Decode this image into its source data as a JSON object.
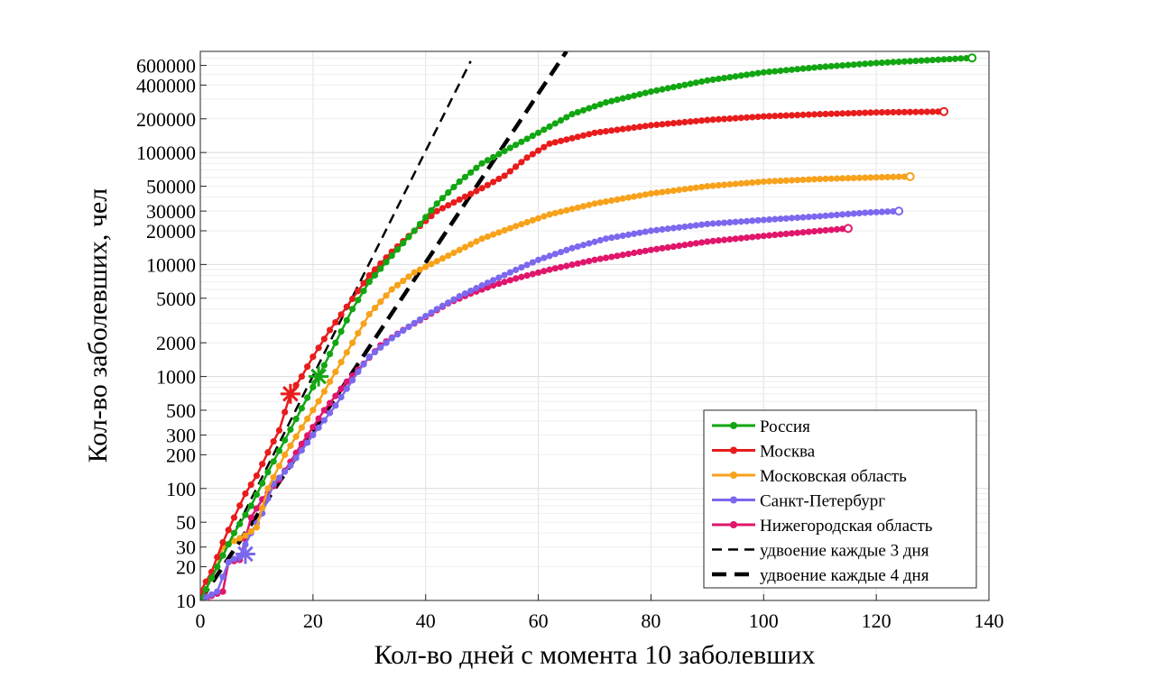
{
  "chart_data": {
    "type": "line",
    "xlabel": "Кол-во дней с момента 10 заболевших",
    "ylabel": "Кол-во заболевших, чел",
    "xlim": [
      0,
      140
    ],
    "ylim": [
      10,
      800000
    ],
    "y_scale": "log",
    "grid": true,
    "legend_placement": "bottom-right",
    "x_ticks": [
      0,
      20,
      40,
      60,
      80,
      100,
      120,
      140
    ],
    "y_ticks": [
      10,
      20,
      30,
      50,
      100,
      200,
      300,
      500,
      1000,
      2000,
      5000,
      10000,
      20000,
      30000,
      50000,
      100000,
      200000,
      400000,
      600000
    ],
    "x_tick_labels": [
      "0",
      "20",
      "40",
      "60",
      "80",
      "100",
      "120",
      "140"
    ],
    "y_tick_labels": [
      "10",
      "20",
      "30",
      "50",
      "100",
      "200",
      "300",
      "500",
      "1000",
      "2000",
      "5000",
      "10000",
      "20000",
      "30000",
      "50000",
      "100000",
      "200000",
      "400000",
      "600000"
    ],
    "series": [
      {
        "name": "Россия",
        "color": "#12a612",
        "marker": "dot",
        "points": [
          [
            0,
            10
          ],
          [
            3,
            20
          ],
          [
            6,
            40
          ],
          [
            9,
            70
          ],
          [
            12,
            140
          ],
          [
            15,
            270
          ],
          [
            18,
            520
          ],
          [
            21,
            1000
          ],
          [
            24,
            2000
          ],
          [
            27,
            4000
          ],
          [
            30,
            7000
          ],
          [
            34,
            12000
          ],
          [
            38,
            20000
          ],
          [
            42,
            35000
          ],
          [
            46,
            55000
          ],
          [
            50,
            80000
          ],
          [
            55,
            110000
          ],
          [
            60,
            150000
          ],
          [
            66,
            220000
          ],
          [
            72,
            280000
          ],
          [
            80,
            350000
          ],
          [
            90,
            440000
          ],
          [
            100,
            520000
          ],
          [
            110,
            580000
          ],
          [
            120,
            630000
          ],
          [
            130,
            670000
          ],
          [
            137,
            700000
          ]
        ],
        "star": [
          21,
          1000
        ]
      },
      {
        "name": "Москва",
        "color": "#e81c1c",
        "marker": "dot",
        "points": [
          [
            0,
            12
          ],
          [
            2,
            18
          ],
          [
            4,
            33
          ],
          [
            6,
            55
          ],
          [
            8,
            90
          ],
          [
            10,
            130
          ],
          [
            12,
            210
          ],
          [
            14,
            330
          ],
          [
            16,
            700
          ],
          [
            18,
            1000
          ],
          [
            20,
            1500
          ],
          [
            23,
            2600
          ],
          [
            26,
            4200
          ],
          [
            30,
            8000
          ],
          [
            34,
            13000
          ],
          [
            38,
            20000
          ],
          [
            42,
            30000
          ],
          [
            46,
            38000
          ],
          [
            50,
            48000
          ],
          [
            54,
            62000
          ],
          [
            58,
            90000
          ],
          [
            62,
            120000
          ],
          [
            70,
            150000
          ],
          [
            80,
            175000
          ],
          [
            90,
            195000
          ],
          [
            100,
            210000
          ],
          [
            110,
            220000
          ],
          [
            120,
            228000
          ],
          [
            132,
            232000
          ]
        ],
        "star": [
          16,
          700
        ]
      },
      {
        "name": "Московская область",
        "color": "#f7a21b",
        "marker": "dot",
        "points": [
          [
            0,
            10
          ],
          [
            3,
            20
          ],
          [
            4,
            30
          ],
          [
            6,
            34
          ],
          [
            8,
            38
          ],
          [
            10,
            45
          ],
          [
            12,
            100
          ],
          [
            15,
            200
          ],
          [
            18,
            350
          ],
          [
            21,
            600
          ],
          [
            24,
            1100
          ],
          [
            27,
            2000
          ],
          [
            30,
            3600
          ],
          [
            34,
            6000
          ],
          [
            38,
            8500
          ],
          [
            44,
            12000
          ],
          [
            50,
            17000
          ],
          [
            56,
            22000
          ],
          [
            62,
            28000
          ],
          [
            70,
            35000
          ],
          [
            80,
            43000
          ],
          [
            90,
            50000
          ],
          [
            100,
            55000
          ],
          [
            110,
            58000
          ],
          [
            120,
            60000
          ],
          [
            126,
            61000
          ]
        ],
        "star": null
      },
      {
        "name": "Санкт-Петербург",
        "color": "#7b68ee",
        "marker": "dot",
        "points": [
          [
            0,
            10
          ],
          [
            3,
            12
          ],
          [
            5,
            22
          ],
          [
            7,
            25
          ],
          [
            9,
            40
          ],
          [
            11,
            60
          ],
          [
            13,
            110
          ],
          [
            16,
            160
          ],
          [
            20,
            300
          ],
          [
            24,
            550
          ],
          [
            28,
            1100
          ],
          [
            30,
            1500
          ],
          [
            34,
            2200
          ],
          [
            38,
            3000
          ],
          [
            42,
            4000
          ],
          [
            46,
            5200
          ],
          [
            50,
            6500
          ],
          [
            55,
            8500
          ],
          [
            60,
            11000
          ],
          [
            66,
            14000
          ],
          [
            72,
            17000
          ],
          [
            80,
            20000
          ],
          [
            90,
            23000
          ],
          [
            100,
            25000
          ],
          [
            110,
            27000
          ],
          [
            118,
            29000
          ],
          [
            124,
            30000
          ]
        ],
        "star": [
          8,
          26
        ]
      },
      {
        "name": "Нижегородская область",
        "color": "#e0156b",
        "marker": "dot",
        "points": [
          [
            0,
            10
          ],
          [
            2,
            11
          ],
          [
            4,
            12
          ],
          [
            5,
            22
          ],
          [
            7,
            23
          ],
          [
            9,
            55
          ],
          [
            11,
            80
          ],
          [
            14,
            120
          ],
          [
            18,
            250
          ],
          [
            22,
            500
          ],
          [
            26,
            900
          ],
          [
            29,
            1300
          ],
          [
            32,
            1900
          ],
          [
            36,
            2600
          ],
          [
            40,
            3400
          ],
          [
            44,
            4500
          ],
          [
            48,
            5500
          ],
          [
            52,
            6500
          ],
          [
            56,
            7500
          ],
          [
            62,
            9000
          ],
          [
            70,
            11000
          ],
          [
            80,
            13500
          ],
          [
            90,
            16000
          ],
          [
            100,
            18000
          ],
          [
            110,
            20000
          ],
          [
            115,
            21000
          ]
        ],
        "star": [
          0,
          10
        ]
      },
      {
        "name": "удвоение каждые 3 дня",
        "color": "#000000",
        "style": "dashed-thin",
        "points": [
          [
            0,
            10
          ],
          [
            48,
            655360
          ]
        ]
      },
      {
        "name": "удвоение каждые 4 дня",
        "color": "#000000",
        "style": "dashed-thick",
        "points": [
          [
            0,
            10
          ],
          [
            65,
            800000
          ]
        ]
      }
    ]
  }
}
